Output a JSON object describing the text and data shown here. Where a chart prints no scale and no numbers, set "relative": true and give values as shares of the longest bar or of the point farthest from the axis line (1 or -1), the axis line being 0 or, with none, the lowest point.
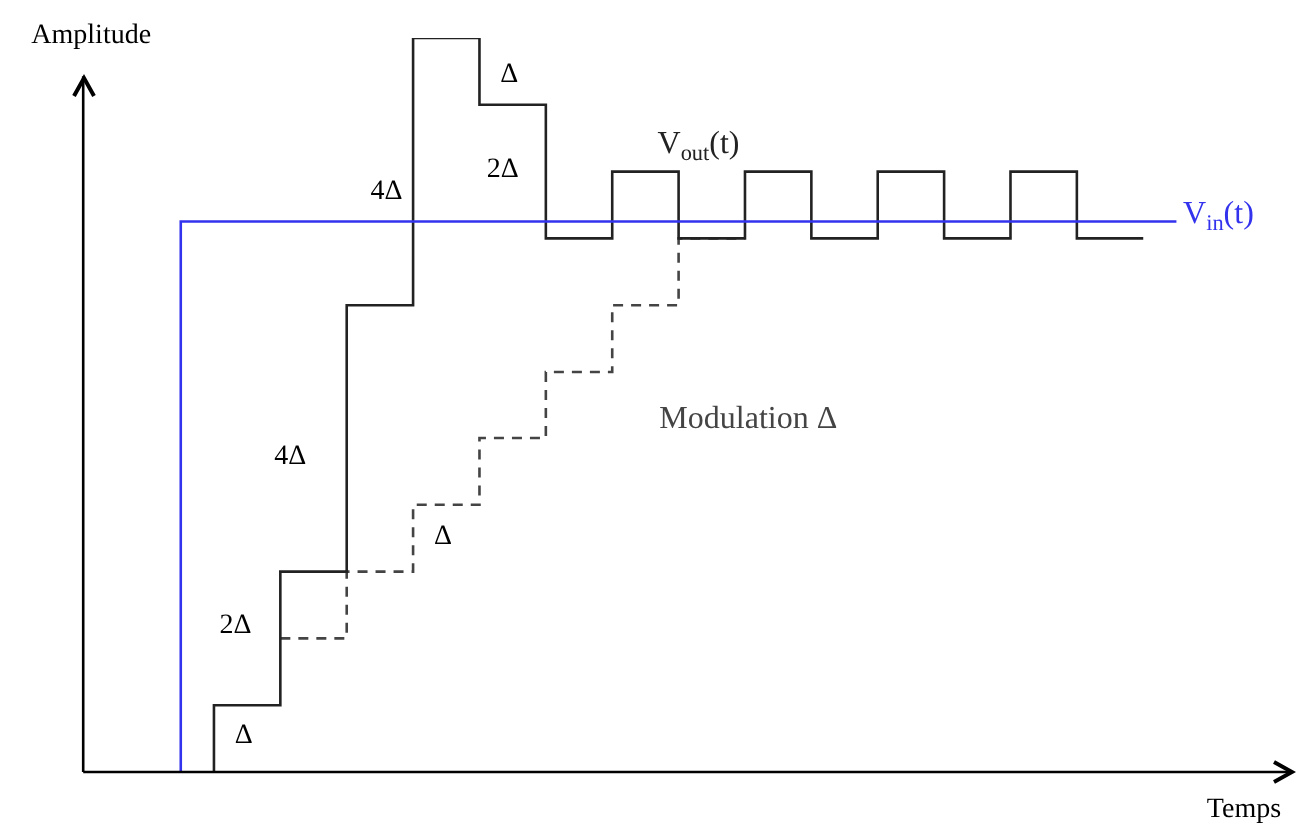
{
  "chart_data": {
    "type": "step",
    "relative": true,
    "xlabel": "Temps",
    "ylabel": "Amplitude",
    "legend": false,
    "marker": "none",
    "categories": [
      null,
      null,
      null,
      null,
      null,
      null,
      null,
      null,
      null,
      null,
      null,
      null,
      null,
      null,
      null,
      null,
      null,
      null,
      null,
      null,
      null,
      null,
      null,
      null,
      null,
      null,
      null,
      null,
      null,
      null,
      null,
      null,
      null,
      null,
      null,
      null,
      null
    ],
    "annotations": [
      "Δ",
      "2Δ",
      "4Δ",
      "4Δ",
      "Δ",
      "2Δ",
      "Δ"
    ],
    "series": [
      {
        "name": "V$_{in}$(t)",
        "color": "#3333ee",
        "values": [
          null,
          null,
          null,
          0,
          null,
          null,
          null,
          null,
          null,
          null,
          null,
          null,
          null,
          null,
          null,
          null,
          null,
          null,
          null,
          null,
          null,
          null,
          null,
          null,
          null,
          null,
          null,
          null,
          null,
          null,
          null,
          null,
          null,
          0.75,
          null,
          null,
          null
        ]
      },
      {
        "name": "V$_{out}$(t)",
        "color": "#222222",
        "values": [
          null,
          null,
          null,
          null,
          0,
          null,
          0.091,
          null,
          0.273,
          null,
          0.636,
          null,
          1,
          null,
          0.909,
          null,
          0.727,
          null,
          0.818,
          null,
          0.727,
          null,
          0.818,
          null,
          0.727,
          null,
          0.818,
          null,
          0.727,
          null,
          0.818,
          null,
          0.727,
          null,
          null,
          null,
          null
        ]
      },
      {
        "name": "Modulation Δ",
        "color": "#444444",
        "line_style": "dashed",
        "values": [
          null,
          null,
          null,
          null,
          null,
          null,
          0.182,
          null,
          0.182,
          null,
          0.273,
          null,
          0.364,
          null,
          0.455,
          null,
          0.545,
          null,
          0.636,
          null,
          0.727,
          null,
          null,
          null,
          null,
          null,
          null,
          null,
          null,
          null,
          null,
          null,
          null,
          null,
          null,
          null,
          null
        ]
      }
    ]
  }
}
